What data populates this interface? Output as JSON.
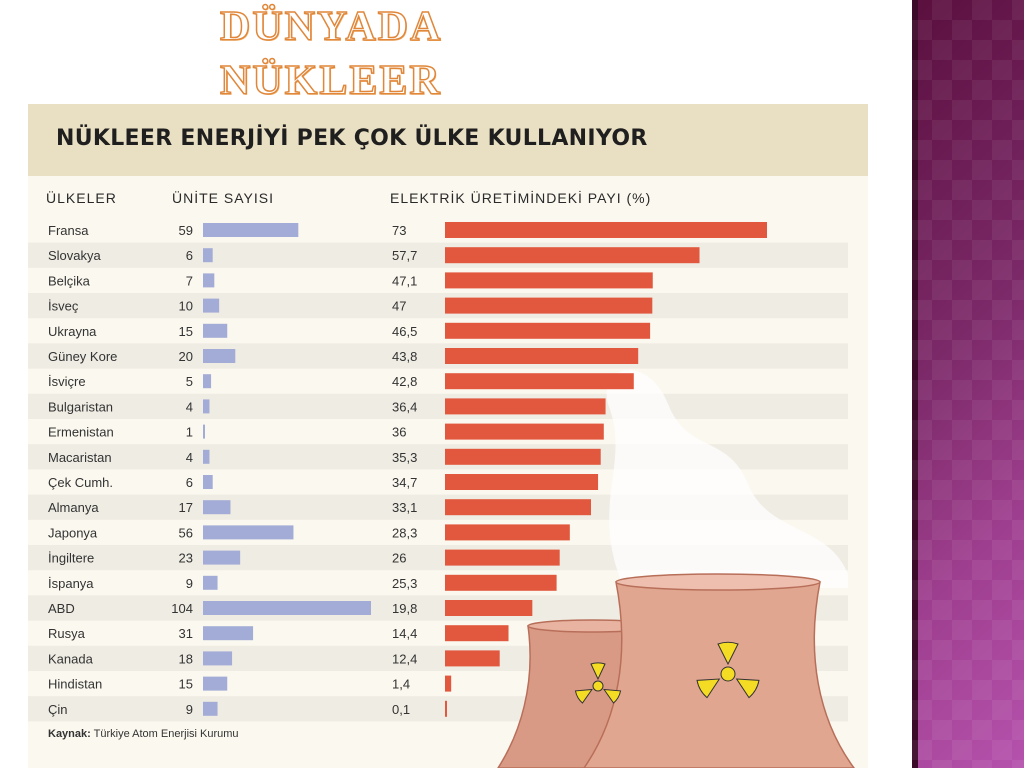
{
  "slide": {
    "title_line1": "DÜNYADA",
    "title_line2": "NÜKLEER"
  },
  "figure": {
    "title": "NÜKLEER ENERJİYİ PEK ÇOK ÜLKE KULLANIYOR",
    "col_countries": "ÜLKELER",
    "col_units": "ÜNİTE SAYISI",
    "col_share": "ELEKTRİK ÜRETİMİNDEKİ PAYI (%)",
    "source_label": "Kaynak:",
    "source_text": "Türkiye Atom Enerjisi Kurumu"
  },
  "chart_data": {
    "type": "bar",
    "title": "NÜKLEER ENERJİYİ PEK ÇOK ÜLKE KULLANIYOR",
    "categories": [
      "Fransa",
      "Slovakya",
      "Belçika",
      "İsveç",
      "Ukrayna",
      "Güney Kore",
      "İsviçre",
      "Bulgaristan",
      "Ermenistan",
      "Macaristan",
      "Çek Cumh.",
      "Almanya",
      "Japonya",
      "İngiltere",
      "İspanya",
      "ABD",
      "Rusya",
      "Kanada",
      "Hindistan",
      "Çin"
    ],
    "series": [
      {
        "name": "ÜNİTE SAYISI",
        "values": [
          59,
          6,
          7,
          10,
          15,
          20,
          5,
          4,
          1,
          4,
          6,
          17,
          56,
          23,
          9,
          104,
          31,
          18,
          15,
          9
        ],
        "labels": [
          "59",
          "6",
          "7",
          "10",
          "15",
          "20",
          "5",
          "4",
          "1",
          "4",
          "6",
          "17",
          "56",
          "23",
          "9",
          "104",
          "31",
          "18",
          "15",
          "9"
        ]
      },
      {
        "name": "ELEKTRİK ÜRETİMİNDEKİ PAYI (%)",
        "values": [
          73,
          57.7,
          47.1,
          47,
          46.5,
          43.8,
          42.8,
          36.4,
          36,
          35.3,
          34.7,
          33.1,
          28.3,
          26,
          25.3,
          19.8,
          14.4,
          12.4,
          1.4,
          0.1
        ],
        "labels": [
          "73",
          "57,7",
          "47,1",
          "47",
          "46,5",
          "43,8",
          "42,8",
          "36,4",
          "36",
          "35,3",
          "34,7",
          "33,1",
          "28,3",
          "26",
          "25,3",
          "19,8",
          "14,4",
          "12,4",
          "1,4",
          "0,1"
        ]
      }
    ],
    "units_xlim": [
      0,
      104
    ],
    "share_xlim": [
      0,
      73
    ],
    "colors": {
      "units_bar": "#a3acd6",
      "share_bar": "#e2583e",
      "row_stripe": "#efece3",
      "header_band": "#e9dfc2"
    },
    "grid": false,
    "legend": "none"
  }
}
